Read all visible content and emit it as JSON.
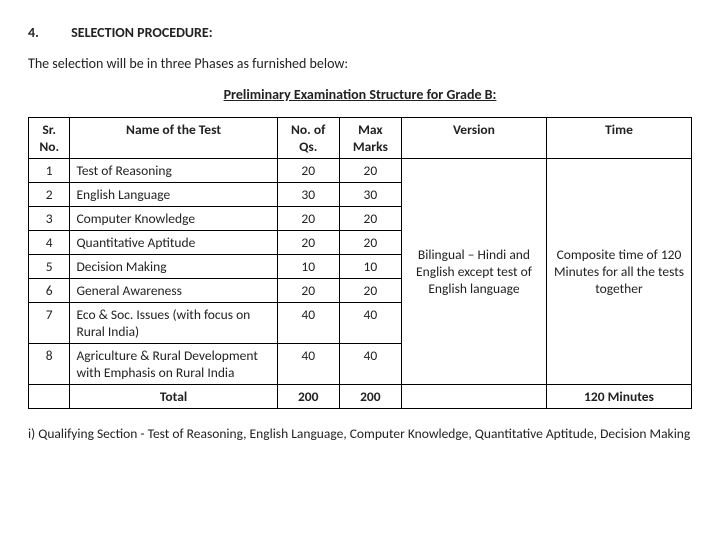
{
  "heading": {
    "number": "4.",
    "title": "SELECTION PROCEDURE:"
  },
  "intro": "The selection will be in three Phases as furnished below:",
  "subheading": "Preliminary Examination Structure for Grade B:",
  "table": {
    "columns": {
      "sr": "Sr. No.",
      "name": "Name of the Test",
      "qs": "No. of Qs.",
      "marks": "Max Marks",
      "version": "Version",
      "time": "Time"
    },
    "col_widths": {
      "sr": "40px",
      "name": "200px",
      "qs": "60px",
      "marks": "60px",
      "version": "140px",
      "time": "140px"
    },
    "rows": [
      {
        "sr": "1",
        "name": "Test of Reasoning",
        "qs": "20",
        "marks": "20"
      },
      {
        "sr": "2",
        "name": "English Language",
        "qs": "30",
        "marks": "30"
      },
      {
        "sr": "3",
        "name": "Computer Knowledge",
        "qs": "20",
        "marks": "20"
      },
      {
        "sr": "4",
        "name": "Quantitative Aptitude",
        "qs": "20",
        "marks": "20"
      },
      {
        "sr": "5",
        "name": "Decision Making",
        "qs": "10",
        "marks": "10"
      },
      {
        "sr": "6",
        "name": "General Awareness",
        "qs": "20",
        "marks": "20"
      },
      {
        "sr": "7",
        "name": "Eco & Soc. Issues (with focus on Rural India)",
        "qs": "40",
        "marks": "40"
      },
      {
        "sr": "8",
        "name": "Agriculture & Rural Development with Emphasis on Rural India",
        "qs": "40",
        "marks": "40"
      }
    ],
    "version_cell": "Bilingual – Hindi and English except test of English language",
    "time_cell": "Composite time of 120 Minutes for all the tests together",
    "total": {
      "label": "Total",
      "qs": "200",
      "marks": "200",
      "time": "120 Minutes"
    }
  },
  "note": "i) Qualifying Section - Test of Reasoning, English Language, Computer Knowledge, Quantitative Aptitude, Decision Making"
}
